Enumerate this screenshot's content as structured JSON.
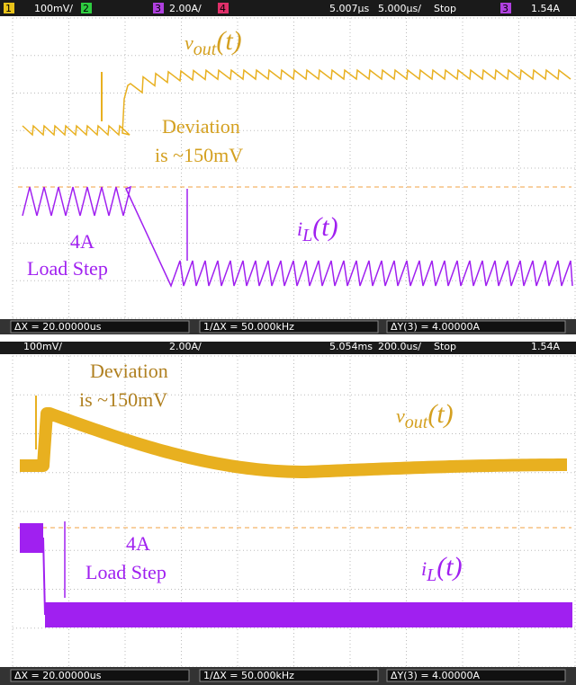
{
  "top_panel": {
    "header": {
      "ch1": "1",
      "ch1_scale": "100mV/",
      "ch2": "2",
      "ch3": "3",
      "ch3_scale": "2.00A/",
      "ch4": "4",
      "delay": "5.007µs",
      "timebase": "5.000µs/",
      "run_state": "Stop",
      "trigger_ch": "3",
      "trigger_level": "1.54A"
    },
    "vout_label": {
      "base": "v",
      "sub": "out",
      "tail": "(t)"
    },
    "deviation": [
      "Deviation",
      "is ~150mV"
    ],
    "il_label": {
      "base": "i",
      "sub": "L",
      "tail": "(t)"
    },
    "load_step": [
      "4A",
      "Load Step"
    ],
    "footer": {
      "dx": "ΔX = 20.00000us",
      "inv_dx": "1/ΔX = 50.000kHz",
      "dy": "ΔY(3) = 4.00000A"
    }
  },
  "bottom_panel": {
    "header": {
      "ch1_scale": "100mV/",
      "ch3_scale": "2.00A/",
      "delay": "5.054ms",
      "timebase": "200.0us/",
      "run_state": "Stop",
      "trigger_level": "1.54A"
    },
    "deviation": [
      "Deviation",
      "is ~150mV"
    ],
    "vout_label": {
      "base": "v",
      "sub": "out",
      "tail": "(t)"
    },
    "load_step": [
      "4A",
      "Load Step"
    ],
    "il_label": {
      "base": "i",
      "sub": "L",
      "tail": "(t)"
    },
    "footer": {
      "dx": "ΔX = 20.00000us",
      "inv_dx": "1/ΔX = 50.000kHz",
      "dy": "ΔY(3) = 4.00000A"
    }
  }
}
